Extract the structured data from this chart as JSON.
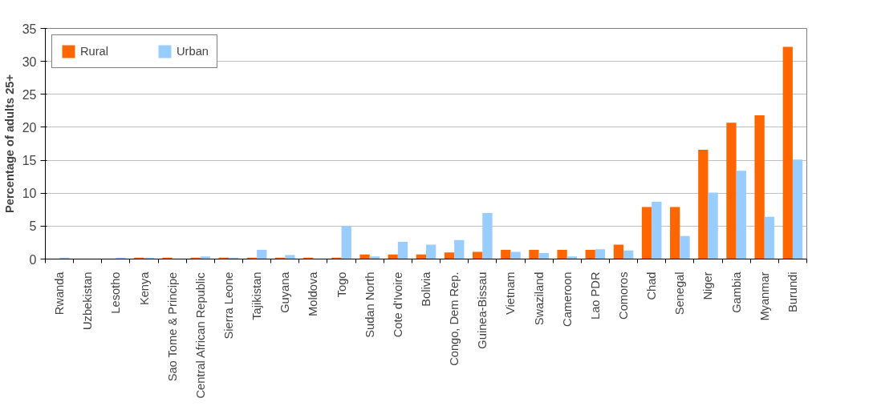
{
  "chart_data": {
    "type": "bar",
    "ylabel": "Percentage of adults 25+",
    "categories": [
      "Rwanda",
      "Uzbekistan",
      "Lesotho",
      "Kenya",
      "Sao Tome & Principe",
      "Central African Republic",
      "Sierra Leone",
      "Tajikistan",
      "Guyana",
      "Moldova",
      "Togo",
      "Sudan North",
      "Cote d'Ivoire",
      "Bolivia",
      "Congo, Dem Rep.",
      "Guinea-Bissau",
      "Vietnam",
      "Swaziland",
      "Cameroon",
      "Lao PDR",
      "Comoros",
      "Chad",
      "Senegal",
      "Niger",
      "Gambia",
      "Myanmar",
      "Burundi"
    ],
    "series": [
      {
        "name": "Rural",
        "color": "#ff6600",
        "values": [
          0,
          0,
          0,
          0.2,
          0.2,
          0.2,
          0.2,
          0.2,
          0.2,
          0.2,
          0.2,
          0.7,
          0.7,
          0.7,
          1.0,
          1.1,
          1.4,
          1.4,
          1.4,
          1.4,
          2.2,
          7.9,
          7.9,
          16.6,
          20.7,
          21.8,
          32.2
        ]
      },
      {
        "name": "Urban",
        "color": "#99ccff",
        "values": [
          0.2,
          0,
          0.2,
          0.2,
          0,
          0.4,
          0.2,
          1.4,
          0.6,
          0,
          5.0,
          0.4,
          2.6,
          2.2,
          2.9,
          7.0,
          1.1,
          0.9,
          0.4,
          1.5,
          1.3,
          8.7,
          3.5,
          10.1,
          13.4,
          6.4,
          15.1
        ]
      }
    ],
    "ylim": [
      0,
      35
    ],
    "yticks": [
      0,
      5,
      10,
      15,
      20,
      25,
      30,
      35
    ],
    "grid": "y",
    "legend": "top left"
  }
}
